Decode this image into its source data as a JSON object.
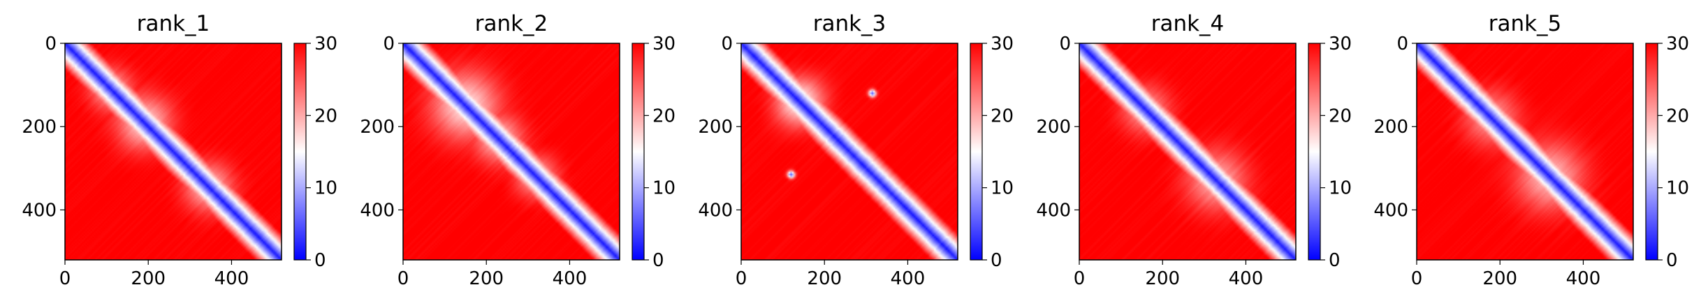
{
  "chart_data": {
    "type": "heatmap",
    "colormap": {
      "name": "bwr",
      "stops": [
        "#0000ff",
        "#ffffff",
        "#ff0000"
      ],
      "range": [
        0,
        30
      ],
      "ticks": [
        "0",
        "10",
        "20",
        "30"
      ]
    },
    "x_range": [
      0,
      520
    ],
    "y_range": [
      0,
      520
    ],
    "x_ticks": [
      "0",
      "200",
      "400"
    ],
    "y_ticks": [
      "0",
      "200",
      "400"
    ],
    "panels": [
      {
        "title": "rank_1",
        "features": [
          {
            "kind": "block",
            "center": [
              190,
              190
            ],
            "spread": 45,
            "level": 18
          },
          {
            "kind": "block",
            "center": [
              345,
              345
            ],
            "spread": 40,
            "level": 19
          },
          {
            "kind": "block",
            "center": [
              110,
              110
            ],
            "spread": 35,
            "level": 20
          }
        ]
      },
      {
        "title": "rank_2",
        "features": [
          {
            "kind": "block",
            "center": [
              150,
              150
            ],
            "spread": 55,
            "level": 17
          },
          {
            "kind": "block",
            "center": [
              230,
              230
            ],
            "spread": 40,
            "level": 19
          },
          {
            "kind": "block",
            "center": [
              320,
              320
            ],
            "spread": 35,
            "level": 20
          }
        ]
      },
      {
        "title": "rank_3",
        "features": [
          {
            "kind": "block",
            "center": [
              140,
              140
            ],
            "spread": 40,
            "level": 16
          },
          {
            "kind": "spot",
            "center": [
              315,
              120
            ],
            "spread": 6,
            "level": 5
          },
          {
            "kind": "spot",
            "center": [
              120,
              315
            ],
            "spread": 6,
            "level": 5
          }
        ]
      },
      {
        "title": "rank_4",
        "features": [
          {
            "kind": "block",
            "center": [
              330,
              330
            ],
            "spread": 50,
            "level": 20
          },
          {
            "kind": "block",
            "center": [
              160,
              160
            ],
            "spread": 40,
            "level": 21
          }
        ]
      },
      {
        "title": "rank_5",
        "features": [
          {
            "kind": "block",
            "center": [
              320,
              320
            ],
            "spread": 55,
            "level": 19
          },
          {
            "kind": "block",
            "center": [
              180,
              180
            ],
            "spread": 45,
            "level": 21
          }
        ]
      }
    ]
  }
}
